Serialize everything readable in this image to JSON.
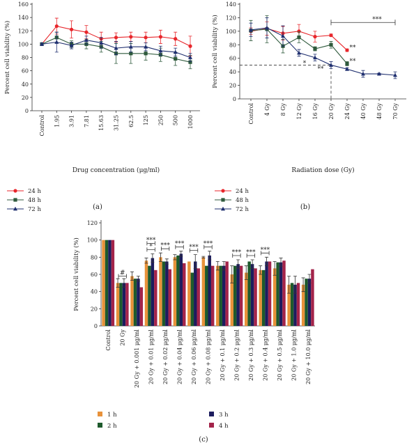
{
  "panels": {
    "a": {
      "caption": "(a)"
    },
    "b": {
      "caption": "(b)"
    },
    "c": {
      "caption": "(c)"
    }
  },
  "colors": {
    "h1": "#e8923a",
    "h2": "#1e5a2c",
    "h3": "#1c1c5e",
    "h4": "#a3244a",
    "red": "#e8262b",
    "green": "#2f5a3c",
    "navy": "#1f2f6f"
  },
  "chart_data": [
    {
      "type": "line",
      "panel": "a",
      "title": "",
      "xlabel": "Drug concentration (μg/ml)",
      "ylabel": "Percent cell viability (%)",
      "ylim": [
        0,
        160
      ],
      "yticks": [
        0,
        20,
        40,
        60,
        80,
        100,
        120,
        140,
        160
      ],
      "categories": [
        "Control",
        "1.95",
        "3.91",
        "7.81",
        "15.63",
        "31.25",
        "62.5",
        "125",
        "250",
        "500",
        "1000"
      ],
      "legend_position": "bottom-left",
      "series": [
        {
          "name": "24 h",
          "color": "#e8262b",
          "marker": "circle",
          "values": [
            100,
            127,
            122,
            118,
            108,
            110,
            111,
            110,
            111,
            108,
            97
          ],
          "errors": [
            2,
            12,
            13,
            10,
            10,
            7,
            7,
            8,
            10,
            10,
            15
          ]
        },
        {
          "name": "48 h",
          "color": "#2f5a3c",
          "marker": "square",
          "values": [
            100,
            110,
            100,
            100,
            96,
            86,
            86,
            86,
            84,
            78,
            73
          ],
          "errors": [
            2,
            8,
            5,
            7,
            8,
            15,
            15,
            10,
            10,
            10,
            10
          ]
        },
        {
          "name": "72 h",
          "color": "#1f2f6f",
          "marker": "triangle",
          "values": [
            100,
            103,
            98,
            106,
            102,
            94,
            96,
            96,
            90,
            88,
            80
          ],
          "errors": [
            2,
            15,
            5,
            6,
            8,
            10,
            8,
            6,
            7,
            6,
            6
          ]
        }
      ]
    },
    {
      "type": "line",
      "panel": "b",
      "title": "",
      "xlabel": "Radiation dose (Gy)",
      "ylabel": "Percent cell viability (%)",
      "ylim": [
        0,
        140
      ],
      "yticks": [
        0,
        20,
        40,
        60,
        80,
        100,
        120,
        140
      ],
      "categories": [
        "Control",
        "4 Gy",
        "8 Gy",
        "12 Gy",
        "16 Gy",
        "20 Gy",
        "24 Gy",
        "40 Gy",
        "48 Gy",
        "70 Gy"
      ],
      "legend_position": "bottom-left",
      "reference_line": {
        "y": 50,
        "x_category": "20 Gy"
      },
      "significance": [
        {
          "label": "***",
          "from": "20 Gy",
          "to": "70 Gy",
          "y": 113
        },
        {
          "label": "**",
          "at": "24 Gy",
          "y": 76
        },
        {
          "label": "**",
          "at": "24 Gy",
          "y": 56
        },
        {
          "label": "*",
          "at": "12 Gy",
          "y": 53
        },
        {
          "label": "**",
          "at": "16 Gy",
          "y": 45
        }
      ],
      "series": [
        {
          "name": "24 h",
          "color": "#e8262b",
          "marker": "circle",
          "values": [
            100,
            104,
            97,
            100,
            92,
            94,
            72,
            null,
            null,
            null
          ],
          "errors": [
            5,
            10,
            10,
            10,
            8,
            2,
            2,
            null,
            null,
            null
          ]
        },
        {
          "name": "48 h",
          "color": "#2f5a3c",
          "marker": "square",
          "values": [
            101,
            103,
            78,
            91,
            74,
            80,
            52,
            null,
            null,
            null
          ],
          "errors": [
            15,
            20,
            10,
            8,
            3,
            5,
            3,
            null,
            null,
            null
          ]
        },
        {
          "name": "72 h",
          "color": "#1f2f6f",
          "marker": "triangle",
          "values": [
            102,
            105,
            93,
            68,
            61,
            50,
            44,
            37,
            37,
            35
          ],
          "errors": [
            10,
            15,
            15,
            5,
            5,
            5,
            2,
            5,
            1,
            5
          ]
        }
      ]
    },
    {
      "type": "bar",
      "panel": "c",
      "title": "",
      "xlabel": "",
      "ylabel": "Percent cell viability (%)",
      "ylim": [
        0,
        120
      ],
      "yticks": [
        0,
        20,
        40,
        60,
        80,
        100,
        120
      ],
      "categories": [
        "Control",
        "20 Gy",
        "20 Gy + 0.001 μg/ml",
        "20 Gy + 0.01 μg/ml",
        "20 Gy + 0.02 μg/ml",
        "20 Gy + 0.04 μg/ml",
        "20 Gy + 0.06 μg/ml",
        "20 Gy + 0.08 μg/ml",
        "20 Gy + 0.1 μg/ml",
        "20 Gy + 0.2 μg/ml",
        "20 Gy + 0.3 μg/ml",
        "20 Gy + 0.4 μg/ml",
        "20 Gy + 0.5 μg/ml",
        "20 Gy + 1.0 μg/ml",
        "20 Gy + 10.0 μg/ml"
      ],
      "legend_position": "bottom",
      "series": [
        {
          "name": "1 h",
          "color": "#e8923a",
          "values": [
            100,
            50,
            58,
            76,
            80,
            80,
            75,
            80,
            70,
            60,
            62,
            65,
            67,
            48,
            48
          ],
          "errors": [
            0,
            5,
            5,
            3,
            5,
            3,
            0,
            1,
            5,
            10,
            8,
            5,
            8,
            10,
            8
          ]
        },
        {
          "name": "2 h",
          "color": "#1e5a2c",
          "values": [
            100,
            50,
            55,
            70,
            75,
            82,
            62,
            70,
            70,
            70,
            75,
            65,
            74,
            50,
            55
          ]
        },
        {
          "name": "3 h",
          "color": "#1c1c5e",
          "values": [
            100,
            50,
            55,
            79,
            75,
            84,
            75,
            82,
            70,
            72,
            72,
            75,
            74,
            48,
            55
          ],
          "errors": [
            0,
            5,
            3,
            5,
            3,
            3,
            8,
            5,
            5,
            5,
            5,
            5,
            5,
            10,
            5
          ]
        },
        {
          "name": "4 h",
          "color": "#a3244a",
          "values": [
            100,
            50,
            45,
            65,
            66,
            73,
            67,
            70,
            75,
            70,
            67,
            75,
            76,
            50,
            66
          ]
        }
      ],
      "significance": [
        {
          "label": "#",
          "category": "20 Gy"
        },
        {
          "label": "*",
          "category": "20 Gy + 0.01 μg/ml"
        },
        {
          "label": "***",
          "category": "20 Gy + 0.01 μg/ml"
        },
        {
          "label": "***",
          "category": "20 Gy + 0.02 μg/ml"
        },
        {
          "label": "***",
          "category": "20 Gy + 0.04 μg/ml"
        },
        {
          "label": "***",
          "category": "20 Gy + 0.06 μg/ml"
        },
        {
          "label": "***",
          "category": "20 Gy + 0.08 μg/ml"
        },
        {
          "label": "***",
          "category": "20 Gy + 0.2 μg/ml"
        },
        {
          "label": "***",
          "category": "20 Gy + 0.3 μg/ml"
        },
        {
          "label": "***",
          "category": "20 Gy + 0.4 μg/ml"
        }
      ]
    }
  ]
}
